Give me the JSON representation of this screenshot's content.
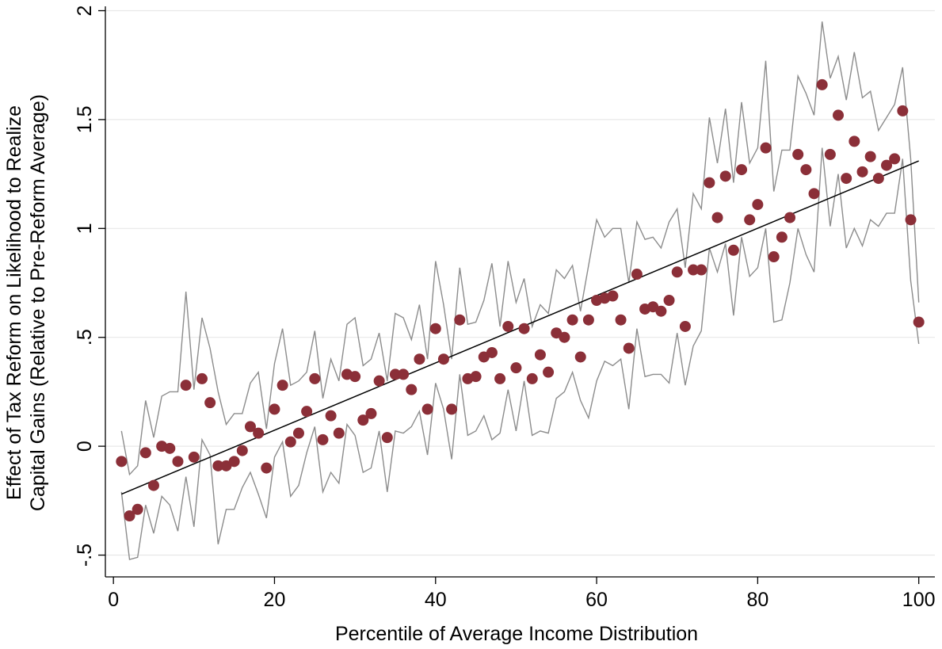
{
  "chart_data": {
    "type": "scatter",
    "title": "",
    "xlabel": "Percentile of Average Income Distribution",
    "ylabel_lines": [
      "Effect of Tax Reform on Likelihood to Realize",
      "Capital Gains (Relative to Pre-Reform Average)"
    ],
    "xlim": [
      -1,
      102
    ],
    "ylim": [
      -0.6,
      2.02
    ],
    "xticks": [
      0,
      20,
      40,
      60,
      80,
      100
    ],
    "xtick_labels": [
      "0",
      "20",
      "40",
      "60",
      "80",
      "100"
    ],
    "yticks": [
      -0.5,
      0,
      0.5,
      1,
      1.5,
      2
    ],
    "ytick_labels": [
      "-.5",
      "0",
      ".5",
      "1",
      "1.5",
      "2"
    ],
    "grid": "horizontal",
    "colors": {
      "points": "#8b2f38",
      "ci_lines": "#8c8c8c",
      "fit_line": "#000000",
      "grid": "#e8e8e8"
    },
    "fit_line": {
      "x": [
        1,
        100
      ],
      "y": [
        -0.22,
        1.31
      ]
    },
    "series": [
      {
        "kind": "points",
        "x": [
          1,
          2,
          3,
          4,
          5,
          6,
          7,
          8,
          9,
          10,
          11,
          12,
          13,
          14,
          15,
          16,
          17,
          18,
          19,
          20,
          21,
          22,
          23,
          24,
          25,
          26,
          27,
          28,
          29,
          30,
          31,
          32,
          33,
          34,
          35,
          36,
          37,
          38,
          39,
          40,
          41,
          42,
          43,
          44,
          45,
          46,
          47,
          48,
          49,
          50,
          51,
          52,
          53,
          54,
          55,
          56,
          57,
          58,
          59,
          60,
          61,
          62,
          63,
          64,
          65,
          66,
          67,
          68,
          69,
          70,
          71,
          72,
          73,
          74,
          75,
          76,
          77,
          78,
          79,
          80,
          81,
          82,
          83,
          84,
          85,
          86,
          87,
          88,
          89,
          90,
          91,
          92,
          93,
          94,
          95,
          96,
          97,
          98,
          99,
          100
        ],
        "y": [
          -0.07,
          -0.32,
          -0.29,
          -0.03,
          -0.18,
          0.0,
          -0.01,
          -0.07,
          0.28,
          -0.05,
          0.31,
          0.2,
          -0.09,
          -0.09,
          -0.07,
          -0.02,
          0.09,
          0.06,
          -0.1,
          0.17,
          0.28,
          0.02,
          0.06,
          0.16,
          0.31,
          0.03,
          0.14,
          0.06,
          0.33,
          0.32,
          0.12,
          0.15,
          0.3,
          0.04,
          0.33,
          0.33,
          0.26,
          0.4,
          0.17,
          0.54,
          0.4,
          0.17,
          0.58,
          0.31,
          0.32,
          0.41,
          0.43,
          0.31,
          0.55,
          0.36,
          0.54,
          0.31,
          0.42,
          0.34,
          0.52,
          0.5,
          0.58,
          0.41,
          0.58,
          0.67,
          0.68,
          0.69,
          0.58,
          0.45,
          0.79,
          0.63,
          0.64,
          0.62,
          0.67,
          0.8,
          0.55,
          0.81,
          0.81,
          1.21,
          1.05,
          1.24,
          0.9,
          1.27,
          1.04,
          1.11,
          1.37,
          0.87,
          0.96,
          1.05,
          1.34,
          1.27,
          1.16,
          1.66,
          1.34,
          1.52,
          1.23,
          1.4,
          1.26,
          1.33,
          1.23,
          1.29,
          1.32,
          1.54,
          1.04,
          0.57
        ]
      },
      {
        "kind": "ci_upper",
        "x": [
          1,
          2,
          3,
          4,
          5,
          6,
          7,
          8,
          9,
          10,
          11,
          12,
          13,
          14,
          15,
          16,
          17,
          18,
          19,
          20,
          21,
          22,
          23,
          24,
          25,
          26,
          27,
          28,
          29,
          30,
          31,
          32,
          33,
          34,
          35,
          36,
          37,
          38,
          39,
          40,
          41,
          42,
          43,
          44,
          45,
          46,
          47,
          48,
          49,
          50,
          51,
          52,
          53,
          54,
          55,
          56,
          57,
          58,
          59,
          60,
          61,
          62,
          63,
          64,
          65,
          66,
          67,
          68,
          69,
          70,
          71,
          72,
          73,
          74,
          75,
          76,
          77,
          78,
          79,
          80,
          81,
          82,
          83,
          84,
          85,
          86,
          87,
          88,
          89,
          90,
          91,
          92,
          93,
          94,
          95,
          96,
          97,
          98,
          99,
          100
        ],
        "y": [
          0.07,
          -0.13,
          -0.09,
          0.21,
          0.04,
          0.23,
          0.25,
          0.25,
          0.71,
          0.26,
          0.59,
          0.45,
          0.25,
          0.1,
          0.15,
          0.15,
          0.29,
          0.34,
          0.08,
          0.38,
          0.54,
          0.28,
          0.3,
          0.34,
          0.53,
          0.22,
          0.4,
          0.3,
          0.56,
          0.59,
          0.37,
          0.4,
          0.52,
          0.3,
          0.61,
          0.59,
          0.49,
          0.65,
          0.4,
          0.85,
          0.65,
          0.4,
          0.82,
          0.56,
          0.57,
          0.67,
          0.84,
          0.55,
          0.85,
          0.66,
          0.77,
          0.55,
          0.65,
          0.61,
          0.81,
          0.77,
          0.83,
          0.62,
          0.83,
          1.04,
          0.96,
          1.0,
          1.0,
          0.75,
          1.03,
          0.95,
          0.96,
          0.91,
          1.03,
          1.09,
          0.82,
          1.16,
          1.09,
          1.51,
          1.3,
          1.55,
          1.21,
          1.58,
          1.3,
          1.37,
          1.77,
          1.17,
          1.36,
          1.36,
          1.7,
          1.62,
          1.52,
          1.95,
          1.69,
          1.79,
          1.59,
          1.81,
          1.6,
          1.63,
          1.45,
          1.51,
          1.57,
          1.74,
          1.32,
          0.66
        ]
      },
      {
        "kind": "ci_lower",
        "x": [
          1,
          2,
          3,
          4,
          5,
          6,
          7,
          8,
          9,
          10,
          11,
          12,
          13,
          14,
          15,
          16,
          17,
          18,
          19,
          20,
          21,
          22,
          23,
          24,
          25,
          26,
          27,
          28,
          29,
          30,
          31,
          32,
          33,
          34,
          35,
          36,
          37,
          38,
          39,
          40,
          41,
          42,
          43,
          44,
          45,
          46,
          47,
          48,
          49,
          50,
          51,
          52,
          53,
          54,
          55,
          56,
          57,
          58,
          59,
          60,
          61,
          62,
          63,
          64,
          65,
          66,
          67,
          68,
          69,
          70,
          71,
          72,
          73,
          74,
          75,
          76,
          77,
          78,
          79,
          80,
          81,
          82,
          83,
          84,
          85,
          86,
          87,
          88,
          89,
          90,
          91,
          92,
          93,
          94,
          95,
          96,
          97,
          98,
          99,
          100
        ],
        "y": [
          -0.21,
          -0.52,
          -0.51,
          -0.27,
          -0.4,
          -0.23,
          -0.27,
          -0.39,
          -0.14,
          -0.37,
          0.03,
          -0.04,
          -0.45,
          -0.29,
          -0.29,
          -0.19,
          -0.12,
          -0.22,
          -0.33,
          -0.05,
          0.02,
          -0.23,
          -0.18,
          -0.03,
          0.09,
          -0.21,
          -0.12,
          -0.17,
          0.1,
          0.05,
          -0.12,
          -0.1,
          0.07,
          -0.21,
          0.07,
          0.06,
          0.09,
          0.16,
          -0.04,
          0.29,
          0.17,
          -0.06,
          0.33,
          0.05,
          0.07,
          0.14,
          0.03,
          0.06,
          0.26,
          0.07,
          0.3,
          0.05,
          0.07,
          0.06,
          0.22,
          0.25,
          0.34,
          0.21,
          0.13,
          0.3,
          0.39,
          0.37,
          0.4,
          0.17,
          0.54,
          0.32,
          0.33,
          0.33,
          0.29,
          0.52,
          0.28,
          0.46,
          0.53,
          0.91,
          0.8,
          0.93,
          0.6,
          0.96,
          0.78,
          0.82,
          1.0,
          0.57,
          0.58,
          0.75,
          1.0,
          0.88,
          0.8,
          1.37,
          1.01,
          1.25,
          0.91,
          1.0,
          0.92,
          1.04,
          1.01,
          1.07,
          1.07,
          1.32,
          0.76,
          0.47
        ]
      }
    ]
  }
}
